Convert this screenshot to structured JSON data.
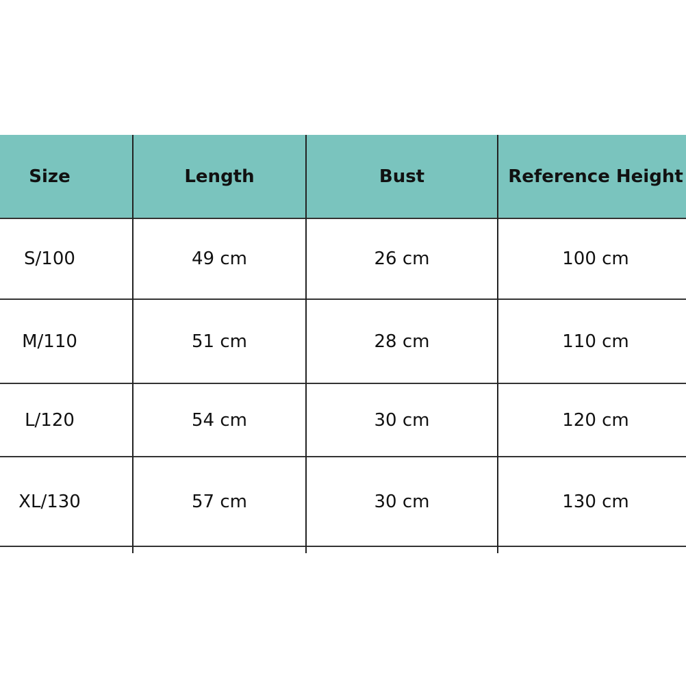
{
  "table": {
    "header_color": "#7AC4BE",
    "columns": [
      "Size",
      "Length",
      "Bust",
      "Reference Height"
    ],
    "rows": [
      [
        "S/100",
        "49 cm",
        "26 cm",
        "100 cm"
      ],
      [
        "M/110",
        "51 cm",
        "28 cm",
        "110 cm"
      ],
      [
        "L/120",
        "54 cm",
        "30 cm",
        "120 cm"
      ],
      [
        "XL/130",
        "57 cm",
        "30 cm",
        "130 cm"
      ]
    ]
  }
}
